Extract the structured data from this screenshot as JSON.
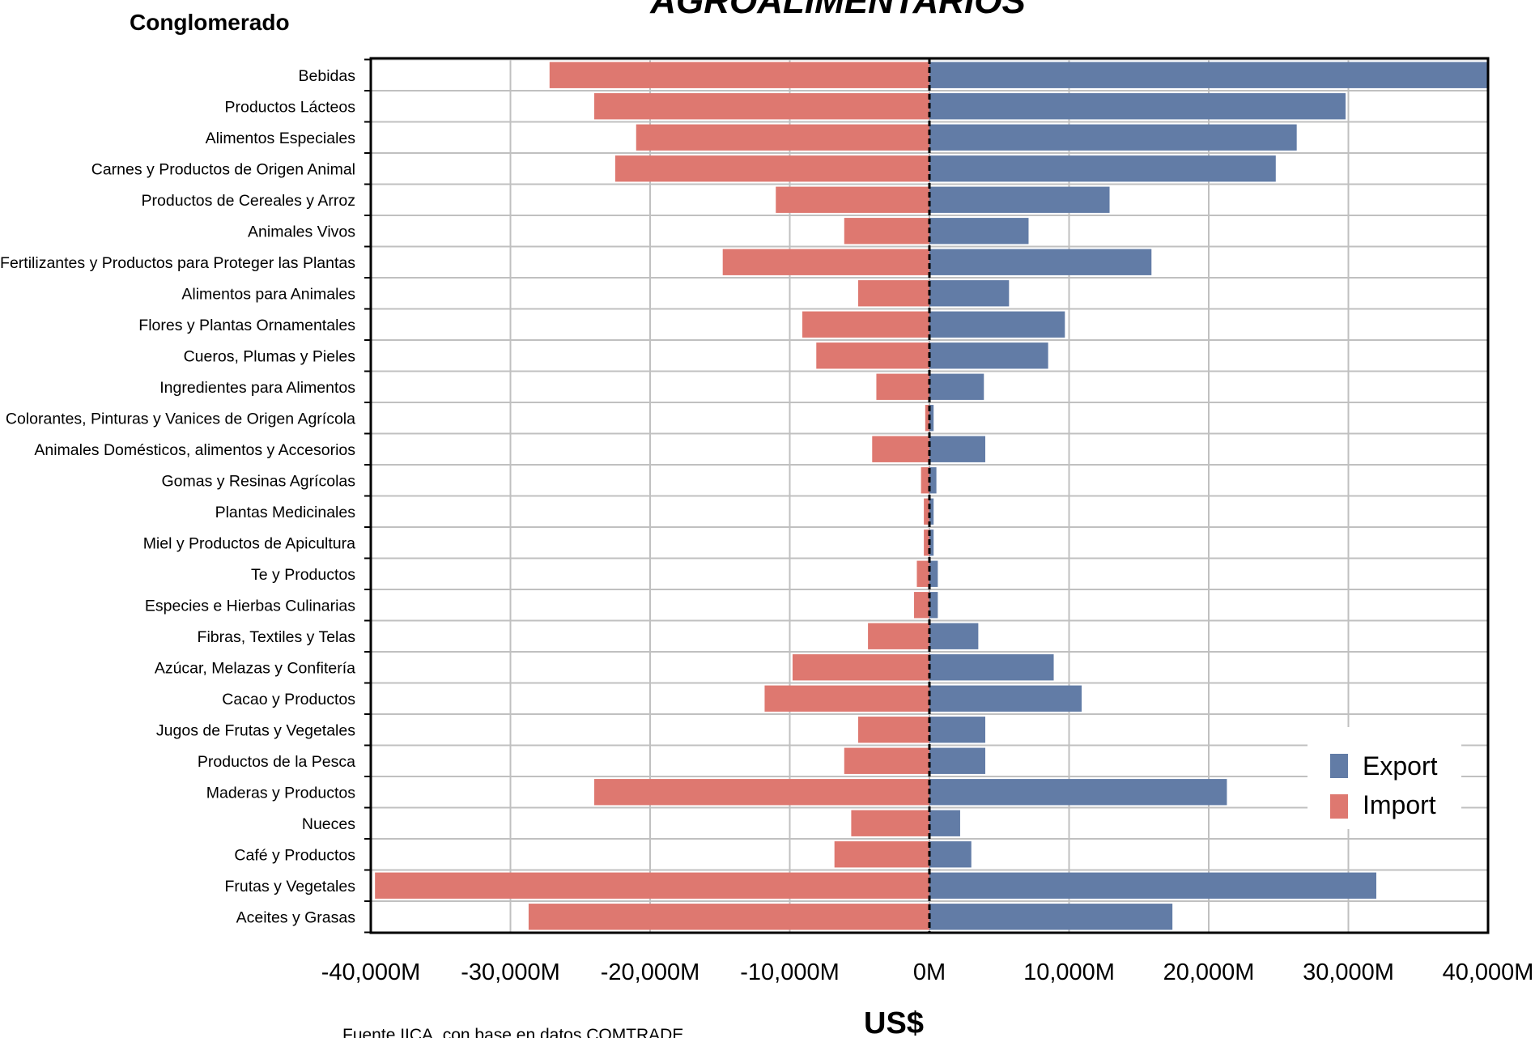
{
  "header": {
    "title": "AGROALIMENTARIOS",
    "corner_label": "Conglomerado"
  },
  "footer": {
    "source_note": "Fuente IICA, con base en datos COMTRADE"
  },
  "colors": {
    "export": "#627ca6",
    "import": "#de7870",
    "grid": "#c0c0c0",
    "axis": "#000000"
  },
  "chart_data": {
    "type": "bar",
    "orientation": "horizontal",
    "xlabel": "US$",
    "xlim": [
      -40000,
      40000
    ],
    "x_ticks": [
      -40000,
      -30000,
      -20000,
      -10000,
      0,
      10000,
      20000,
      30000,
      40000
    ],
    "x_tick_labels": [
      "-40,000M",
      "-30,000M",
      "-20,000M",
      "-10,000M",
      "0M",
      "10,000M",
      "20,000M",
      "30,000M",
      "40,000M"
    ],
    "grid": true,
    "legend_position": "bottom-right",
    "categories": [
      "Bebidas",
      "Productos Lácteos",
      "Alimentos Especiales",
      "Carnes y Productos de Origen Animal",
      "Productos de Cereales y Arroz",
      "Animales Vivos",
      "Fertilizantes y Productos para Proteger las Plantas",
      "Alimentos para  Animales",
      "Flores y Plantas Ornamentales",
      "Cueros, Plumas y Pieles",
      "Ingredientes para Alimentos",
      "Colorantes, Pinturas y Vanices de Origen Agrícola",
      "Animales Domésticos, alimentos y Accesorios",
      "Gomas y Resinas Agrícolas",
      "Plantas Medicinales",
      "Miel y Productos de Apicultura",
      "Te y Productos",
      "Especies e Hierbas Culinarias",
      "Fibras, Textiles y Telas",
      "Azúcar, Melazas y Confitería",
      "Cacao y Productos",
      "Jugos de Frutas y Vegetales",
      "Productos de la Pesca",
      "Maderas y Productos",
      "Nueces",
      "Café y Productos",
      "Frutas y Vegetales",
      "Aceites y Grasas"
    ],
    "series": [
      {
        "name": "Export",
        "values": [
          40000,
          29800,
          26300,
          24800,
          12900,
          7100,
          15900,
          5700,
          9700,
          8500,
          3900,
          300,
          4000,
          500,
          300,
          300,
          600,
          600,
          3500,
          8900,
          10900,
          4000,
          4000,
          21300,
          2200,
          3000,
          32000,
          17400
        ]
      },
      {
        "name": "Import",
        "values": [
          -27200,
          -24000,
          -21000,
          -22500,
          -11000,
          -6100,
          -14800,
          -5100,
          -9100,
          -8100,
          -3800,
          -300,
          -4100,
          -600,
          -400,
          -400,
          -900,
          -1100,
          -4400,
          -9800,
          -11800,
          -5100,
          -6100,
          -24000,
          -5600,
          -6800,
          -39700,
          -28700
        ]
      }
    ]
  }
}
